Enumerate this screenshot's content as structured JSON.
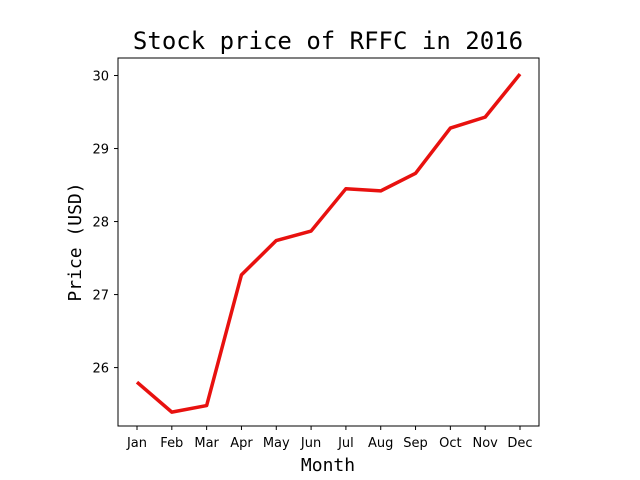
{
  "chart_data": {
    "type": "line",
    "title": "Stock price of RFFC in 2016",
    "xlabel": "Month",
    "ylabel": "Price (USD)",
    "categories": [
      "Jan",
      "Feb",
      "Mar",
      "Apr",
      "May",
      "Jun",
      "Jul",
      "Aug",
      "Sep",
      "Oct",
      "Nov",
      "Dec"
    ],
    "series": [
      {
        "values": [
          25.8,
          25.39,
          25.48,
          27.27,
          27.74,
          27.87,
          28.45,
          28.42,
          28.66,
          29.28,
          29.43,
          30.02
        ],
        "color": "#e8110f"
      }
    ],
    "yticks": [
      26,
      27,
      28,
      29,
      30
    ],
    "ylim": [
      25.2,
      30.24
    ],
    "grid": false,
    "legend": "none"
  }
}
